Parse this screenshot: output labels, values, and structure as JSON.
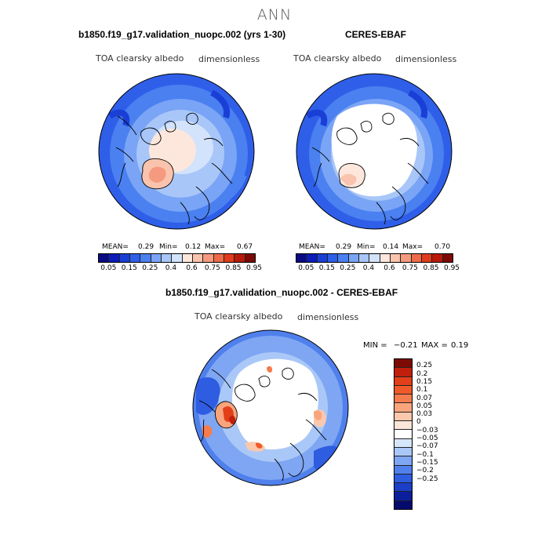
{
  "season": "ANN",
  "colors": {
    "abs_scale": [
      "#0a0a82",
      "#0c1cb8",
      "#1a3fd6",
      "#2f5fe8",
      "#4a80f0",
      "#7aa4f5",
      "#a8c6f8",
      "#d2e3fb",
      "#fde7dc",
      "#f9c3ad",
      "#f59a7e",
      "#ee6a48",
      "#e03c1e",
      "#b81a0a",
      "#7d0a04"
    ],
    "diff_scale": [
      "#7d0a04",
      "#c21e0c",
      "#e2401a",
      "#f05a2a",
      "#f57c4e",
      "#f8a57e",
      "#fbc8ae",
      "#fbe4d8",
      "#ffffff",
      "#d6e6fb",
      "#aac8f7",
      "#7ea6f3",
      "#4f80ec",
      "#2e5de2",
      "#1c3fc8",
      "#0b1e9c",
      "#050a6e"
    ],
    "land_white": "#ffffff",
    "coast": "#000000"
  },
  "panels": {
    "model": {
      "title": "b1850.f19_g17.validation_nuopc.002 (yrs 1-30)",
      "variable": "TOA clearsky albedo",
      "units": "dimensionless",
      "mean_label": "MEAN=",
      "mean": "0.29",
      "min_label": "Min=",
      "min": "0.12",
      "max_label": "Max=",
      "max": "0.67",
      "ticks": [
        "0.05",
        "0.15",
        "0.25",
        "0.4",
        "0.6",
        "0.75",
        "0.85",
        "0.95"
      ]
    },
    "obs": {
      "title": "CERES-EBAF",
      "variable": "TOA clearsky albedo",
      "units": "dimensionless",
      "mean_label": "MEAN=",
      "mean": "0.29",
      "min_label": "Min=",
      "min": "0.14",
      "max_label": "Max=",
      "max": "0.70",
      "ticks": [
        "0.05",
        "0.15",
        "0.25",
        "0.4",
        "0.6",
        "0.75",
        "0.85",
        "0.95"
      ]
    },
    "diff": {
      "title": "b1850.f19_g17.validation_nuopc.002 - CERES-EBAF",
      "variable": "TOA clearsky albedo",
      "units": "dimensionless",
      "min_label": "MIN =",
      "min": "−0.21",
      "max_label": "MAX =",
      "max": "0.19",
      "labels": [
        "0.25",
        "0.2",
        "0.15",
        "0.1",
        "0.07",
        "0.05",
        "0.03",
        "0",
        "−0.03",
        "−0.05",
        "−0.07",
        "−0.1",
        "−0.15",
        "−0.2",
        "−0.25"
      ]
    }
  }
}
